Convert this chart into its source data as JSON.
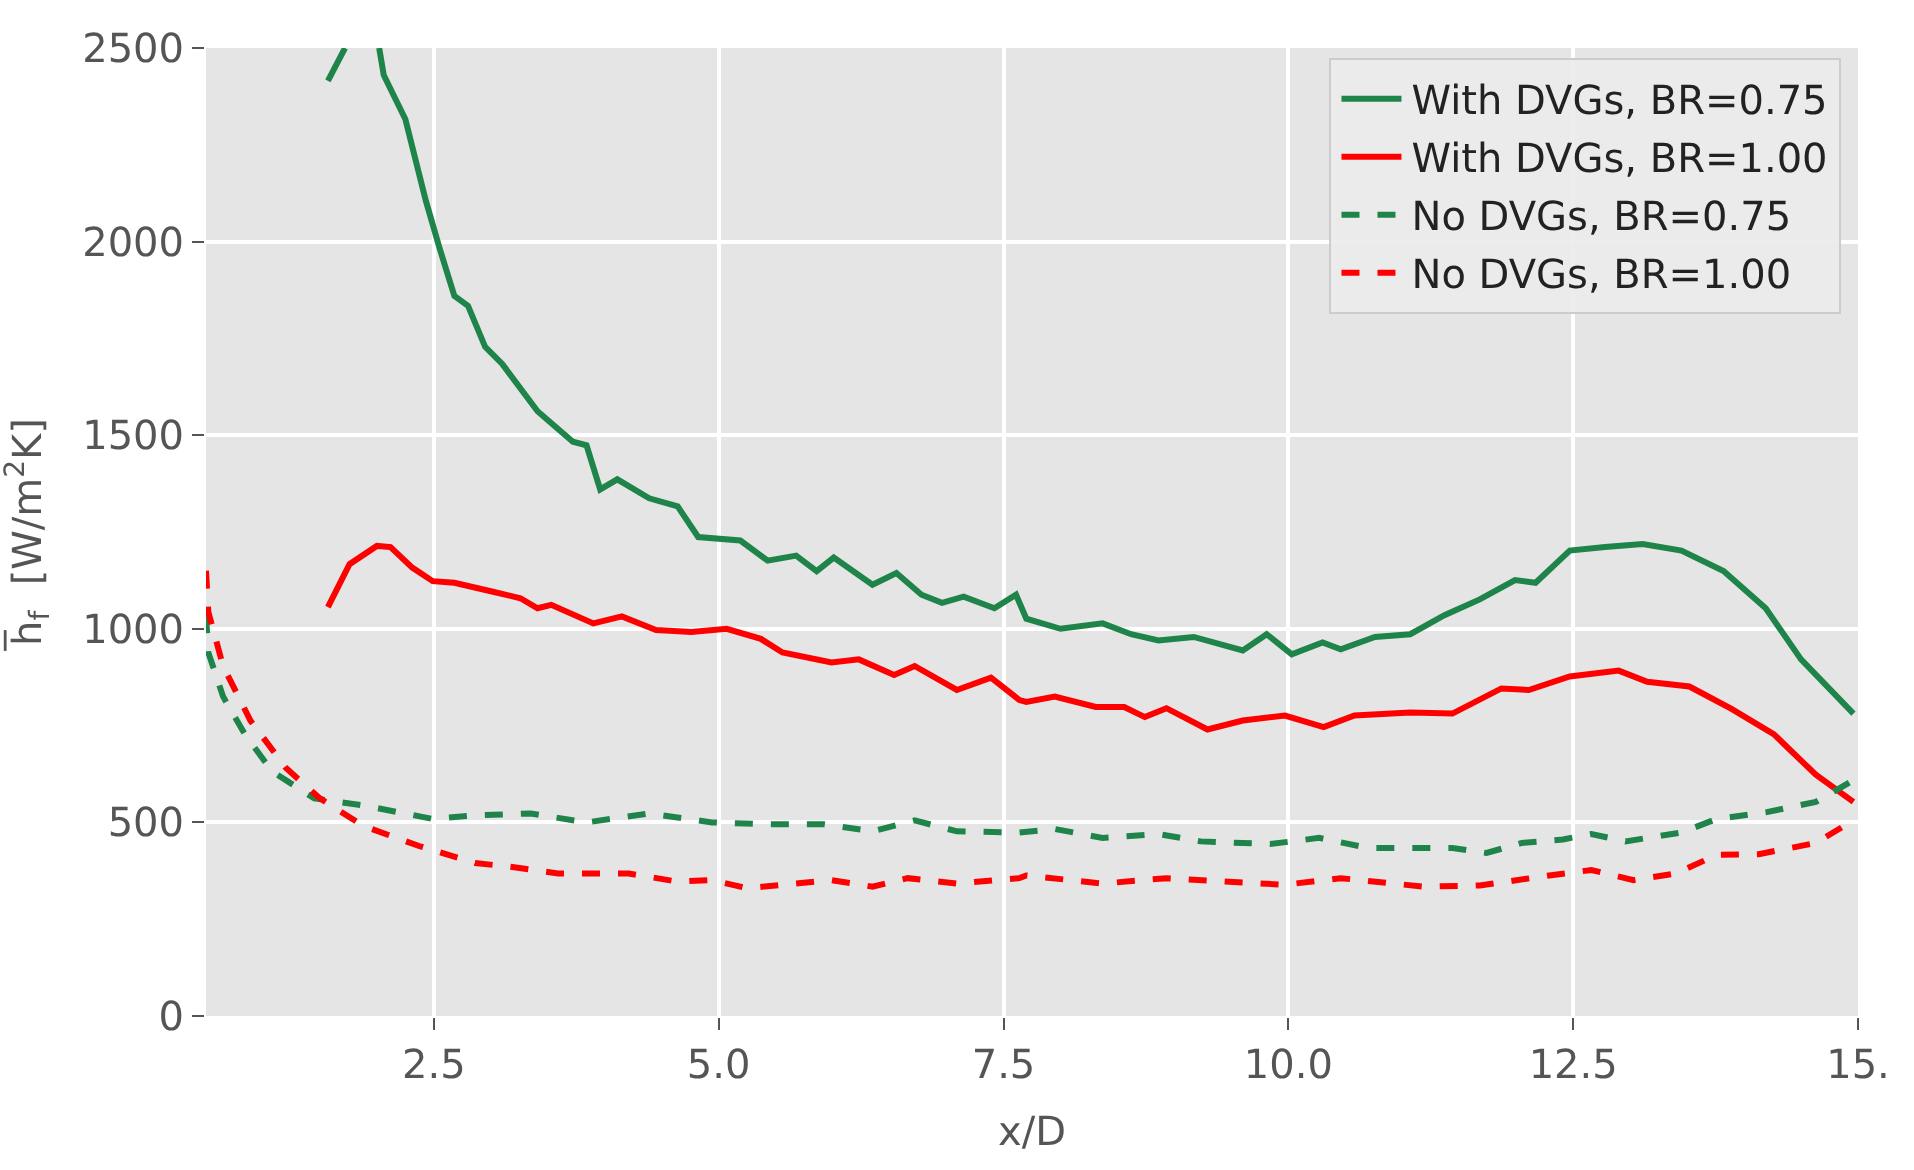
{
  "chart_data": {
    "type": "line",
    "xlabel": "x/D",
    "ylabel": "h̅$_{f}$  [W/m$^{2}$K]",
    "xlim": [
      0.5,
      15
    ],
    "xticks": [
      2.5,
      {
        "value": 5,
        "label": "5.0"
      },
      7.5,
      {
        "value": 10,
        "label": "10.0"
      },
      12.5,
      {
        "value": 15,
        "label": "15."
      }
    ],
    "ylim": [
      0,
      2500
    ],
    "yticks": [
      0,
      500,
      1000,
      1500,
      2000,
      2500
    ],
    "grid": true,
    "legend": "top right",
    "marker": "none",
    "series": [
      {
        "name": "With DVGs, BR=0.75",
        "color": "#1e8449",
        "line_style": "solid",
        "x": [
          1.57,
          1.72,
          1.85,
          2.02,
          2.06,
          2.25,
          2.43,
          2.55,
          2.68,
          2.8,
          2.95,
          3.1,
          3.41,
          3.72,
          3.84,
          3.96,
          4.11,
          4.39,
          4.64,
          4.82,
          5.19,
          5.43,
          5.68,
          5.86,
          6.01,
          6.35,
          6.56,
          6.78,
          6.96,
          7.15,
          7.42,
          7.61,
          7.7,
          8.0,
          8.37,
          8.62,
          8.86,
          9.17,
          9.6,
          9.81,
          10.03,
          10.3,
          10.46,
          10.76,
          11.07,
          11.37,
          11.68,
          11.99,
          12.17,
          12.47,
          12.78,
          13.11,
          13.45,
          13.82,
          14.19,
          14.5,
          14.96
        ],
        "values": [
          2415,
          2500,
          null,
          2500,
          2430,
          2316,
          2105,
          1983,
          1860,
          1834,
          1728,
          1684,
          1562,
          1483,
          1474,
          1360,
          1386,
          1337,
          1316,
          1237,
          1228,
          1176,
          1189,
          1149,
          1184,
          1114,
          1144,
          1088,
          1067,
          1083,
          1053,
          1088,
          1026,
          1000,
          1014,
          986,
          970,
          979,
          944,
          986,
          934,
          965,
          947,
          979,
          986,
          1035,
          1076,
          1126,
          1119,
          1202,
          1211,
          1219,
          1202,
          1149,
          1053,
          921,
          781
        ]
      },
      {
        "name": "With DVGs, BR=1.00",
        "color": "#ff0000",
        "line_style": "solid",
        "x": [
          1.57,
          1.76,
          2.0,
          2.12,
          2.31,
          2.49,
          2.68,
          3.0,
          3.26,
          3.41,
          3.53,
          3.9,
          4.15,
          4.45,
          4.76,
          5.07,
          5.37,
          5.56,
          5.99,
          6.23,
          6.54,
          6.72,
          7.09,
          7.39,
          7.64,
          7.7,
          7.95,
          8.31,
          8.56,
          8.74,
          8.93,
          9.29,
          9.6,
          9.97,
          10.31,
          10.58,
          11.07,
          11.44,
          11.87,
          12.11,
          12.47,
          12.9,
          13.15,
          13.52,
          13.89,
          14.26,
          14.63,
          14.96
        ],
        "values": [
          1056,
          1167,
          1214,
          1211,
          1158,
          1123,
          1119,
          1097,
          1079,
          1053,
          1062,
          1014,
          1032,
          997,
          992,
          1000,
          974,
          939,
          913,
          921,
          881,
          904,
          842,
          874,
          816,
          811,
          825,
          798,
          798,
          772,
          795,
          740,
          763,
          776,
          746,
          776,
          784,
          781,
          846,
          842,
          877,
          892,
          863,
          851,
          793,
          728,
          623,
          553
        ]
      },
      {
        "name": "No DVGs, BR=0.75",
        "color": "#1e8449",
        "line_style": "dashed",
        "x": [
          0.5,
          0.52,
          0.65,
          0.84,
          1.08,
          1.45,
          1.88,
          2.49,
          2.86,
          3.35,
          3.84,
          4.39,
          4.94,
          5.43,
          5.92,
          6.35,
          6.72,
          7.09,
          7.64,
          7.95,
          8.37,
          8.86,
          9.23,
          9.84,
          10.27,
          10.7,
          11.44,
          11.74,
          12.05,
          12.41,
          12.66,
          12.96,
          13.45,
          13.76,
          14.19,
          14.63,
          14.96
        ],
        "values": [
          1035,
          939,
          825,
          728,
          632,
          562,
          544,
          509,
          518,
          523,
          500,
          523,
          500,
          495,
          495,
          477,
          505,
          477,
          474,
          483,
          460,
          470,
          451,
          444,
          460,
          434,
          434,
          421,
          447,
          456,
          470,
          451,
          474,
          509,
          526,
          553,
          609
        ]
      },
      {
        "name": "No DVGs, BR=1.00",
        "color": "#ff0000",
        "line_style": "dashed",
        "x": [
          0.5,
          0.52,
          0.65,
          0.89,
          1.2,
          1.5,
          1.88,
          2.37,
          2.86,
          3.16,
          3.59,
          4.21,
          4.64,
          4.94,
          5.25,
          5.99,
          6.35,
          6.66,
          7.09,
          7.64,
          7.7,
          8.37,
          8.93,
          9.97,
          10.46,
          11.19,
          11.68,
          12.29,
          12.66,
          13.03,
          13.4,
          13.76,
          14.13,
          14.63,
          14.93
        ],
        "values": [
          1150,
          1044,
          904,
          763,
          641,
          562,
          491,
          439,
          395,
          386,
          368,
          368,
          347,
          351,
          330,
          351,
          334,
          356,
          342,
          356,
          363,
          342,
          356,
          339,
          356,
          334,
          337,
          363,
          377,
          351,
          368,
          416,
          418,
          447,
          500
        ]
      }
    ]
  }
}
